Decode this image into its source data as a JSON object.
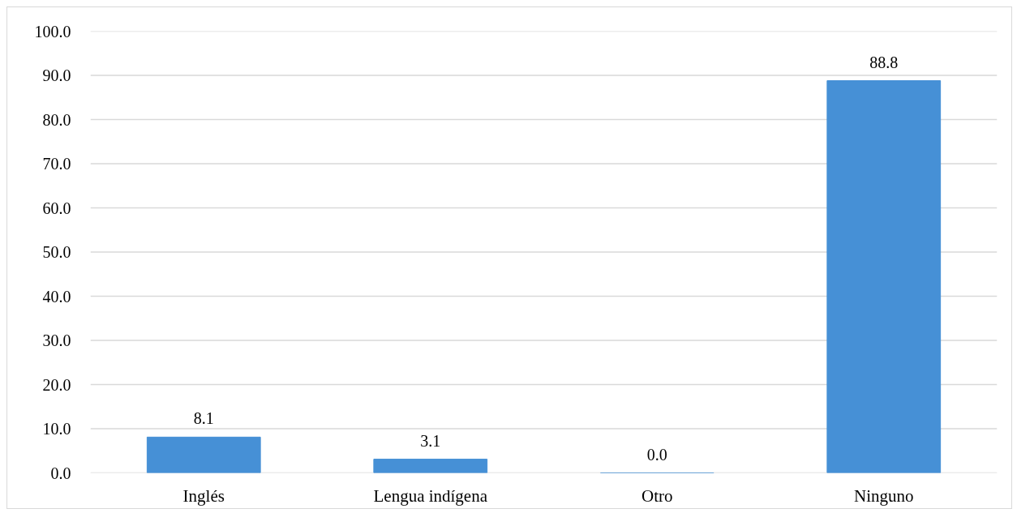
{
  "chart_data": {
    "type": "bar",
    "categories": [
      "Inglés",
      "Lengua indígena",
      "Otro",
      "Ninguno"
    ],
    "values": [
      8.1,
      3.1,
      0.0,
      88.8
    ],
    "value_labels": [
      "8.1",
      "3.1",
      "0.0",
      "88.8"
    ],
    "color": "#4690d6",
    "ylim": [
      0,
      100
    ],
    "yticks": [
      {
        "value": 0,
        "label": "0.0"
      },
      {
        "value": 10,
        "label": "10.0"
      },
      {
        "value": 20,
        "label": "20.0"
      },
      {
        "value": 30,
        "label": "30.0"
      },
      {
        "value": 40,
        "label": "40.0"
      },
      {
        "value": 50,
        "label": "50.0"
      },
      {
        "value": 60,
        "label": "60.0"
      },
      {
        "value": 70,
        "label": "70.0"
      },
      {
        "value": 80,
        "label": "80.0"
      },
      {
        "value": 90,
        "label": "90.0"
      },
      {
        "value": 100,
        "label": "100.0"
      }
    ],
    "grid": "y"
  }
}
